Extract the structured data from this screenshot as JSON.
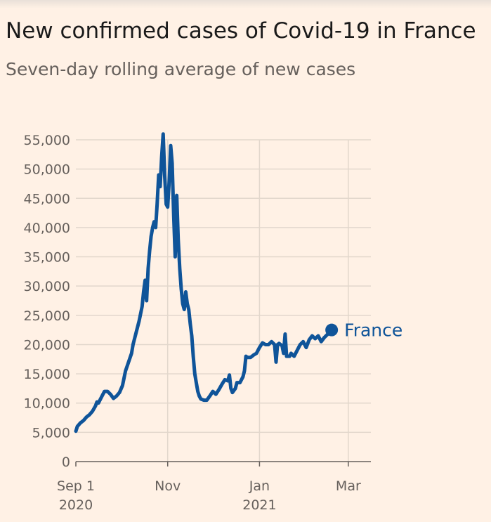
{
  "title": "New confirmed cases of Covid-19 in France",
  "subtitle": "Seven-day rolling average of new cases",
  "colors": {
    "background": "#fff1e5",
    "line": "#0f5499",
    "grid": "#e2d7cc",
    "axis": "#66605c"
  },
  "chart_data": {
    "type": "line",
    "title": "New confirmed cases of Covid-19 in France",
    "subtitle": "Seven-day rolling average of new cases",
    "xlabel": "",
    "ylabel": "",
    "ylim": [
      0,
      55000
    ],
    "y_ticks": [
      {
        "value": 0,
        "label": "0"
      },
      {
        "value": 5000,
        "label": "5,000"
      },
      {
        "value": 10000,
        "label": "10,000"
      },
      {
        "value": 15000,
        "label": "15,000"
      },
      {
        "value": 20000,
        "label": "20,000"
      },
      {
        "value": 25000,
        "label": "25,000"
      },
      {
        "value": 30000,
        "label": "30,000"
      },
      {
        "value": 35000,
        "label": "35,000"
      },
      {
        "value": 40000,
        "label": "40,000"
      },
      {
        "value": 45000,
        "label": "45,000"
      },
      {
        "value": 50000,
        "label": "50,000"
      },
      {
        "value": 55000,
        "label": "55,000"
      }
    ],
    "x_range_days": [
      0,
      196
    ],
    "x_ticks": [
      {
        "day": 0,
        "label": "Sep 1",
        "sublabel": "2020"
      },
      {
        "day": 61,
        "label": "Nov",
        "sublabel": ""
      },
      {
        "day": 122,
        "label": "Jan",
        "sublabel": "2021"
      },
      {
        "day": 181,
        "label": "Mar",
        "sublabel": ""
      }
    ],
    "grid": true,
    "legend": "end-of-line",
    "series": [
      {
        "name": "France",
        "color": "#0f5499",
        "points": [
          [
            0,
            5200
          ],
          [
            1,
            6000
          ],
          [
            3,
            6600
          ],
          [
            5,
            7000
          ],
          [
            7,
            7600
          ],
          [
            9,
            8000
          ],
          [
            11,
            8600
          ],
          [
            13,
            9500
          ],
          [
            14,
            10200
          ],
          [
            15,
            10000
          ],
          [
            17,
            11000
          ],
          [
            19,
            12000
          ],
          [
            21,
            12000
          ],
          [
            23,
            11500
          ],
          [
            25,
            10800
          ],
          [
            27,
            11200
          ],
          [
            29,
            11800
          ],
          [
            31,
            13000
          ],
          [
            33,
            15500
          ],
          [
            35,
            17000
          ],
          [
            37,
            18500
          ],
          [
            38,
            20000
          ],
          [
            40,
            22000
          ],
          [
            42,
            24000
          ],
          [
            44,
            26500
          ],
          [
            45,
            29000
          ],
          [
            46,
            31000
          ],
          [
            47,
            27500
          ],
          [
            48,
            33000
          ],
          [
            49,
            36000
          ],
          [
            50,
            38500
          ],
          [
            51,
            40000
          ],
          [
            52,
            41000
          ],
          [
            53,
            40000
          ],
          [
            54,
            44000
          ],
          [
            55,
            49000
          ],
          [
            56,
            47000
          ],
          [
            57,
            52000
          ],
          [
            58,
            56000
          ],
          [
            59,
            49000
          ],
          [
            60,
            44000
          ],
          [
            61,
            43500
          ],
          [
            62,
            48000
          ],
          [
            63,
            54000
          ],
          [
            64,
            51000
          ],
          [
            65,
            42000
          ],
          [
            66,
            35000
          ],
          [
            67,
            45500
          ],
          [
            68,
            38000
          ],
          [
            69,
            33000
          ],
          [
            70,
            29500
          ],
          [
            71,
            27000
          ],
          [
            72,
            26000
          ],
          [
            73,
            29000
          ],
          [
            74,
            27000
          ],
          [
            75,
            26000
          ],
          [
            76,
            23500
          ],
          [
            77,
            21500
          ],
          [
            78,
            18000
          ],
          [
            79,
            15000
          ],
          [
            80,
            13500
          ],
          [
            81,
            12000
          ],
          [
            82,
            11200
          ],
          [
            83,
            10700
          ],
          [
            85,
            10500
          ],
          [
            87,
            10500
          ],
          [
            89,
            11200
          ],
          [
            91,
            12000
          ],
          [
            93,
            11500
          ],
          [
            95,
            12300
          ],
          [
            97,
            13200
          ],
          [
            99,
            14000
          ],
          [
            101,
            13800
          ],
          [
            102,
            14800
          ],
          [
            103,
            12500
          ],
          [
            104,
            11800
          ],
          [
            106,
            12500
          ],
          [
            107,
            13500
          ],
          [
            109,
            13500
          ],
          [
            111,
            14500
          ],
          [
            112,
            15500
          ],
          [
            113,
            18000
          ],
          [
            114,
            17800
          ],
          [
            116,
            17800
          ],
          [
            118,
            18200
          ],
          [
            120,
            18500
          ],
          [
            122,
            19500
          ],
          [
            124,
            20300
          ],
          [
            126,
            20000
          ],
          [
            128,
            20000
          ],
          [
            130,
            20500
          ],
          [
            132,
            20000
          ],
          [
            133,
            17000
          ],
          [
            134,
            20000
          ],
          [
            135,
            20200
          ],
          [
            137,
            19800
          ],
          [
            138,
            18500
          ],
          [
            139,
            21800
          ],
          [
            140,
            18000
          ],
          [
            142,
            18000
          ],
          [
            143,
            18500
          ],
          [
            145,
            18000
          ],
          [
            147,
            19000
          ],
          [
            149,
            20000
          ],
          [
            151,
            20500
          ],
          [
            153,
            19500
          ],
          [
            155,
            20800
          ],
          [
            157,
            21500
          ],
          [
            159,
            21000
          ],
          [
            161,
            21500
          ],
          [
            163,
            20500
          ],
          [
            165,
            21200
          ],
          [
            167,
            21700
          ],
          [
            169,
            22500
          ]
        ],
        "end_marker": true
      }
    ]
  }
}
